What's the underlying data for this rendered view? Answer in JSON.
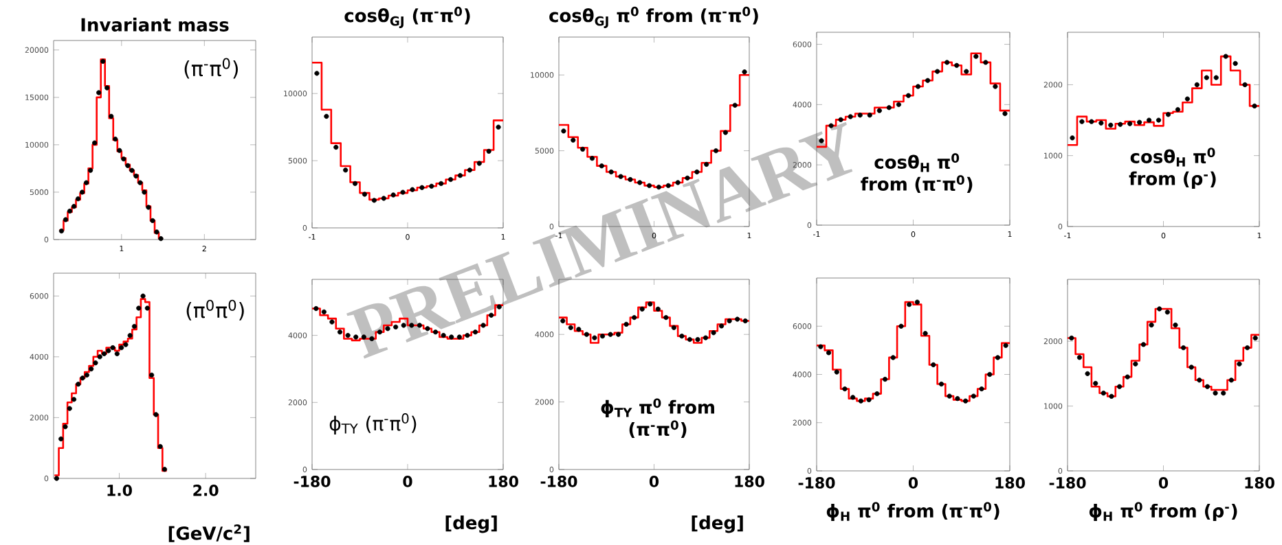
{
  "chart_data": [
    {
      "type": "histogram",
      "title": "Invariant mass",
      "annotations": [
        "(π$^{-}$π$^{0}$)",
        "PRELIMINARY"
      ],
      "xlim": [
        0.18,
        2.62
      ],
      "ylim": [
        0,
        21000
      ],
      "xticks": [
        1,
        2
      ],
      "yticks": [
        0,
        5000,
        10000,
        15000,
        20000
      ],
      "series": [
        {
          "type": "histogram",
          "color": "#ff0000",
          "bins": [
            0.25,
            0.3,
            0.35,
            0.4,
            0.45,
            0.5,
            0.55,
            0.6,
            0.65,
            0.7,
            0.75,
            0.8,
            0.85,
            0.9,
            0.95,
            1.0,
            1.05,
            1.1,
            1.15,
            1.2,
            1.25,
            1.3,
            1.35,
            1.4,
            1.45,
            1.5
          ],
          "values": [
            1000,
            2000,
            2900,
            3400,
            4200,
            4900,
            5900,
            7500,
            10000,
            15000,
            19000,
            16200,
            12800,
            10500,
            9300,
            8600,
            7900,
            7300,
            6800,
            6000,
            5200,
            3500,
            2000,
            700,
            100
          ]
        },
        {
          "type": "scatter",
          "color": "#000000",
          "marker": "circle",
          "x": [
            0.275,
            0.325,
            0.375,
            0.425,
            0.475,
            0.525,
            0.575,
            0.625,
            0.675,
            0.725,
            0.775,
            0.825,
            0.875,
            0.925,
            0.975,
            1.025,
            1.075,
            1.125,
            1.175,
            1.225,
            1.275,
            1.325,
            1.375,
            1.425,
            1.475
          ],
          "values": [
            900,
            2100,
            3000,
            3500,
            4300,
            5000,
            6000,
            7300,
            10200,
            15500,
            18800,
            16000,
            13000,
            10600,
            9400,
            8500,
            7800,
            7300,
            6700,
            6000,
            5000,
            3400,
            2000,
            800,
            100
          ]
        }
      ]
    },
    {
      "type": "histogram",
      "title": "cosθ$_{GJ}$ (π$^{-}$π$^{0}$)",
      "xlim": [
        -1,
        1
      ],
      "ylim": [
        0,
        14200
      ],
      "xticks": [
        -1,
        0,
        1
      ],
      "yticks": [
        0,
        5000,
        10000
      ],
      "series": [
        {
          "type": "histogram",
          "color": "#ff0000",
          "bins": [
            -1,
            -0.9,
            -0.8,
            -0.7,
            -0.6,
            -0.5,
            -0.4,
            -0.3,
            -0.2,
            -0.1,
            0,
            0.1,
            0.2,
            0.3,
            0.4,
            0.5,
            0.6,
            0.7,
            0.8,
            0.9,
            1
          ],
          "values": [
            12300,
            8800,
            6300,
            4600,
            3400,
            2600,
            2100,
            2200,
            2400,
            2600,
            2800,
            3000,
            3100,
            3300,
            3600,
            3900,
            4300,
            4900,
            5800,
            8000
          ]
        },
        {
          "type": "scatter",
          "color": "#000000",
          "marker": "circle",
          "x": [
            -0.95,
            -0.85,
            -0.75,
            -0.65,
            -0.55,
            -0.45,
            -0.35,
            -0.25,
            -0.15,
            -0.05,
            0.05,
            0.15,
            0.25,
            0.35,
            0.45,
            0.55,
            0.65,
            0.75,
            0.85,
            0.95
          ],
          "values": [
            11500,
            8300,
            6000,
            4300,
            3300,
            2500,
            2050,
            2200,
            2450,
            2650,
            2850,
            3000,
            3100,
            3300,
            3600,
            3900,
            4300,
            4800,
            5700,
            7500
          ]
        }
      ]
    },
    {
      "type": "histogram",
      "title": "cosθ$_{GJ}$ π$^{0}$ from (π$^{-}$π$^{0}$)",
      "xlim": [
        -1,
        1
      ],
      "ylim": [
        0,
        12500
      ],
      "xticks": [
        -1,
        0,
        1
      ],
      "yticks": [
        0,
        5000,
        10000
      ],
      "series": [
        {
          "type": "histogram",
          "color": "#ff0000",
          "bins": [
            -1,
            -0.9,
            -0.8,
            -0.7,
            -0.6,
            -0.5,
            -0.4,
            -0.3,
            -0.2,
            -0.1,
            0,
            0.1,
            0.2,
            0.3,
            0.4,
            0.5,
            0.6,
            0.7,
            0.8,
            0.9,
            1
          ],
          "values": [
            6700,
            5900,
            5200,
            4600,
            4000,
            3600,
            3300,
            3100,
            2900,
            2700,
            2600,
            2700,
            2900,
            3200,
            3600,
            4200,
            5000,
            6300,
            8000,
            10000
          ]
        },
        {
          "type": "scatter",
          "color": "#000000",
          "marker": "circle",
          "x": [
            -0.95,
            -0.85,
            -0.75,
            -0.65,
            -0.55,
            -0.45,
            -0.35,
            -0.25,
            -0.15,
            -0.05,
            0.05,
            0.15,
            0.25,
            0.35,
            0.45,
            0.55,
            0.65,
            0.75,
            0.85,
            0.95
          ],
          "values": [
            6300,
            5700,
            5100,
            4500,
            4000,
            3600,
            3300,
            3100,
            2900,
            2700,
            2600,
            2700,
            2900,
            3200,
            3600,
            4100,
            5000,
            6200,
            8000,
            10200
          ]
        }
      ]
    },
    {
      "type": "histogram",
      "annotations": [
        "cosθ$_{H}$ π$^{0}$ from (π$^{-}$π$^{0}$)"
      ],
      "xlim": [
        -1,
        1
      ],
      "ylim": [
        0,
        6400
      ],
      "xticks": [
        -1,
        0,
        1
      ],
      "yticks": [
        0,
        2000,
        4000,
        6000
      ],
      "series": [
        {
          "type": "histogram",
          "color": "#ff0000",
          "bins": [
            -1,
            -0.9,
            -0.8,
            -0.7,
            -0.6,
            -0.5,
            -0.4,
            -0.3,
            -0.2,
            -0.1,
            0,
            0.1,
            0.2,
            0.3,
            0.4,
            0.5,
            0.6,
            0.7,
            0.8,
            0.9,
            1
          ],
          "values": [
            2600,
            3300,
            3500,
            3600,
            3700,
            3700,
            3900,
            3900,
            4100,
            4300,
            4600,
            4800,
            5100,
            5400,
            5300,
            5000,
            5700,
            5400,
            4700,
            3800
          ]
        },
        {
          "type": "scatter",
          "color": "#000000",
          "marker": "circle",
          "x": [
            -0.95,
            -0.85,
            -0.75,
            -0.65,
            -0.55,
            -0.45,
            -0.35,
            -0.25,
            -0.15,
            -0.05,
            0.05,
            0.15,
            0.25,
            0.35,
            0.45,
            0.55,
            0.65,
            0.75,
            0.85,
            0.95
          ],
          "values": [
            2800,
            3300,
            3500,
            3600,
            3650,
            3650,
            3800,
            3900,
            4000,
            4300,
            4600,
            4800,
            5100,
            5400,
            5300,
            5100,
            5600,
            5400,
            4600,
            3700
          ]
        }
      ]
    },
    {
      "type": "histogram",
      "annotations": [
        "cosθ$_{H}$ π$^{0}$ from (ρ$^{-}$)"
      ],
      "xlim": [
        -1,
        1
      ],
      "ylim": [
        0,
        2740
      ],
      "xticks": [
        -1,
        0,
        1
      ],
      "yticks": [
        0,
        1000,
        2000
      ],
      "series": [
        {
          "type": "histogram",
          "color": "#ff0000",
          "bins": [
            -1,
            -0.9,
            -0.8,
            -0.7,
            -0.6,
            -0.5,
            -0.4,
            -0.3,
            -0.2,
            -0.1,
            0,
            0.1,
            0.2,
            0.3,
            0.4,
            0.5,
            0.6,
            0.7,
            0.8,
            0.9,
            1
          ],
          "values": [
            1150,
            1550,
            1480,
            1500,
            1380,
            1450,
            1480,
            1430,
            1470,
            1420,
            1600,
            1620,
            1750,
            1950,
            2200,
            2000,
            2400,
            2200,
            2000,
            1700
          ]
        },
        {
          "type": "scatter",
          "color": "#000000",
          "marker": "circle",
          "x": [
            -0.95,
            -0.85,
            -0.75,
            -0.65,
            -0.55,
            -0.45,
            -0.35,
            -0.25,
            -0.15,
            -0.05,
            0.05,
            0.15,
            0.25,
            0.35,
            0.45,
            0.55,
            0.65,
            0.75,
            0.85,
            0.95
          ],
          "values": [
            1250,
            1480,
            1480,
            1460,
            1430,
            1440,
            1450,
            1470,
            1500,
            1500,
            1580,
            1650,
            1800,
            2000,
            2100,
            2100,
            2400,
            2300,
            2000,
            1700
          ]
        }
      ]
    },
    {
      "type": "histogram",
      "xlabel": "[GeV/c$^{2}$]",
      "annotations": [
        "(π$^{0}$π$^{0}$)"
      ],
      "xlim": [
        0.24,
        2.58
      ],
      "ylim": [
        0,
        6750
      ],
      "xticks": [
        {
          "value": 1,
          "label": "1.0"
        },
        {
          "value": 2,
          "label": "2.0"
        }
      ],
      "yticks": [
        0,
        2000,
        4000,
        6000
      ],
      "series": [
        {
          "type": "histogram",
          "color": "#ff0000",
          "bins": [
            0.25,
            0.3,
            0.35,
            0.4,
            0.45,
            0.5,
            0.55,
            0.6,
            0.65,
            0.7,
            0.75,
            0.8,
            0.85,
            0.9,
            0.95,
            1.0,
            1.05,
            1.1,
            1.15,
            1.2,
            1.25,
            1.3,
            1.35,
            1.4,
            1.45,
            1.5,
            1.55
          ],
          "values": [
            100,
            1000,
            1800,
            2500,
            2800,
            3100,
            3300,
            3500,
            3700,
            4000,
            4200,
            4100,
            4300,
            4300,
            4200,
            4400,
            4500,
            4600,
            4900,
            5300,
            5900,
            5800,
            3300,
            2100,
            1000,
            250
          ]
        },
        {
          "type": "scatter",
          "color": "#000000",
          "marker": "circle",
          "x": [
            0.275,
            0.325,
            0.375,
            0.425,
            0.475,
            0.525,
            0.575,
            0.625,
            0.675,
            0.725,
            0.775,
            0.825,
            0.875,
            0.925,
            0.975,
            1.025,
            1.075,
            1.125,
            1.175,
            1.225,
            1.275,
            1.325,
            1.375,
            1.425,
            1.475,
            1.525
          ],
          "values": [
            0,
            1300,
            1700,
            2300,
            2600,
            3100,
            3300,
            3400,
            3600,
            3800,
            4000,
            4100,
            4200,
            4300,
            4100,
            4300,
            4400,
            4700,
            5000,
            5600,
            6000,
            5600,
            3400,
            2100,
            1050,
            300
          ]
        }
      ]
    },
    {
      "type": "histogram",
      "xlabel": "[deg]",
      "annotations": [
        "ϕ$_{TY}$ (π$^{-}$π$^{0}$)"
      ],
      "xlim": [
        -180,
        180
      ],
      "ylim": [
        0,
        5670
      ],
      "xticks": [
        -180,
        0,
        180
      ],
      "yticks": [
        0,
        2000,
        4000
      ],
      "series": [
        {
          "type": "histogram",
          "color": "#ff0000",
          "bins": [
            -180,
            -165,
            -150,
            -135,
            -120,
            -105,
            -90,
            -75,
            -60,
            -45,
            -30,
            -15,
            0,
            15,
            30,
            45,
            60,
            75,
            90,
            105,
            120,
            135,
            150,
            165,
            180
          ],
          "values": [
            4800,
            4600,
            4500,
            4200,
            3900,
            3850,
            3900,
            3900,
            4100,
            4300,
            4400,
            4500,
            4300,
            4300,
            4200,
            4100,
            3950,
            3900,
            3900,
            4000,
            4100,
            4300,
            4600,
            4900
          ]
        },
        {
          "type": "scatter",
          "color": "#000000",
          "marker": "circle",
          "x": [
            -172.5,
            -157.5,
            -142.5,
            -127.5,
            -112.5,
            -97.5,
            -82.5,
            -67.5,
            -52.5,
            -37.5,
            -22.5,
            -7.5,
            7.5,
            22.5,
            37.5,
            52.5,
            67.5,
            82.5,
            97.5,
            112.5,
            127.5,
            142.5,
            157.5,
            172.5
          ],
          "values": [
            4800,
            4700,
            4400,
            4100,
            4000,
            3950,
            3950,
            3900,
            4100,
            4200,
            4250,
            4300,
            4300,
            4300,
            4200,
            4100,
            4000,
            3950,
            3950,
            4000,
            4100,
            4300,
            4600,
            4850
          ]
        }
      ]
    },
    {
      "type": "histogram",
      "xlabel": "[deg]",
      "annotations": [
        "ϕ$_{TY}$ π$^{0}$ from (π$^{-}$π$^{0}$)"
      ],
      "xlim": [
        -180,
        180
      ],
      "ylim": [
        0,
        5630
      ],
      "xticks": [
        -180,
        0,
        180
      ],
      "yticks": [
        0,
        2000,
        4000
      ],
      "series": [
        {
          "type": "histogram",
          "color": "#ff0000",
          "bins": [
            -180,
            -165,
            -150,
            -135,
            -120,
            -105,
            -90,
            -75,
            -60,
            -45,
            -30,
            -15,
            0,
            15,
            30,
            45,
            60,
            75,
            90,
            105,
            120,
            135,
            150,
            165,
            180
          ],
          "values": [
            4500,
            4300,
            4100,
            4000,
            3750,
            4000,
            4000,
            4050,
            4300,
            4500,
            4800,
            4950,
            4700,
            4500,
            4250,
            3950,
            3850,
            3750,
            3900,
            4100,
            4300,
            4450,
            4450,
            4400
          ]
        },
        {
          "type": "scatter",
          "color": "#000000",
          "marker": "circle",
          "x": [
            -172.5,
            -157.5,
            -142.5,
            -127.5,
            -112.5,
            -97.5,
            -82.5,
            -67.5,
            -52.5,
            -37.5,
            -22.5,
            -7.5,
            7.5,
            22.5,
            37.5,
            52.5,
            67.5,
            82.5,
            97.5,
            112.5,
            127.5,
            142.5,
            157.5,
            172.5
          ],
          "values": [
            4400,
            4200,
            4150,
            4000,
            3900,
            3950,
            4000,
            4000,
            4300,
            4500,
            4750,
            4900,
            4750,
            4500,
            4200,
            3950,
            3850,
            3850,
            3900,
            4050,
            4250,
            4400,
            4450,
            4400
          ]
        }
      ]
    },
    {
      "type": "histogram",
      "xlabel": "ϕ$_{H}$ π$^{0}$ from (π$^{-}$π$^{0}$)",
      "xlim": [
        -180,
        180
      ],
      "ylim": [
        0,
        8000
      ],
      "xticks": [
        -180,
        0,
        180
      ],
      "yticks": [
        0,
        2000,
        4000,
        6000
      ],
      "series": [
        {
          "type": "histogram",
          "color": "#ff0000",
          "bins": [
            -180,
            -165,
            -150,
            -135,
            -120,
            -105,
            -90,
            -75,
            -60,
            -45,
            -30,
            -15,
            0,
            15,
            30,
            45,
            60,
            75,
            90,
            105,
            120,
            135,
            150,
            165,
            180
          ],
          "values": [
            5200,
            5000,
            4200,
            3400,
            3000,
            2900,
            3000,
            3200,
            3800,
            4700,
            6000,
            7000,
            6900,
            5600,
            4400,
            3600,
            3100,
            2950,
            2900,
            3100,
            3400,
            4000,
            4700,
            5300
          ]
        },
        {
          "type": "scatter",
          "color": "#000000",
          "marker": "circle",
          "x": [
            -172.5,
            -157.5,
            -142.5,
            -127.5,
            -112.5,
            -97.5,
            -82.5,
            -67.5,
            -52.5,
            -37.5,
            -22.5,
            -7.5,
            7.5,
            22.5,
            37.5,
            52.5,
            67.5,
            82.5,
            97.5,
            112.5,
            127.5,
            142.5,
            157.5,
            172.5
          ],
          "values": [
            5150,
            4900,
            4100,
            3400,
            3050,
            2900,
            2950,
            3200,
            3800,
            4700,
            6000,
            6900,
            7000,
            5700,
            4400,
            3600,
            3100,
            3000,
            2900,
            3100,
            3400,
            4000,
            4700,
            5200
          ]
        }
      ]
    },
    {
      "type": "histogram",
      "xlabel": "ϕ$_{H}$ π$^{0}$ from (ρ$^{-}$)",
      "xlim": [
        -180,
        180
      ],
      "ylim": [
        0,
        2955
      ],
      "xticks": [
        -180,
        0,
        180
      ],
      "yticks": [
        0,
        1000,
        2000
      ],
      "series": [
        {
          "type": "histogram",
          "color": "#ff0000",
          "bins": [
            -180,
            -165,
            -150,
            -135,
            -120,
            -105,
            -90,
            -75,
            -60,
            -45,
            -30,
            -15,
            0,
            15,
            30,
            45,
            60,
            75,
            90,
            105,
            120,
            135,
            150,
            165,
            180
          ],
          "values": [
            2050,
            1800,
            1600,
            1300,
            1200,
            1150,
            1300,
            1450,
            1700,
            1950,
            2300,
            2500,
            2500,
            2200,
            1900,
            1600,
            1400,
            1300,
            1250,
            1250,
            1400,
            1700,
            1900,
            2100
          ]
        },
        {
          "type": "scatter",
          "color": "#000000",
          "marker": "circle",
          "x": [
            -172.5,
            -157.5,
            -142.5,
            -127.5,
            -112.5,
            -97.5,
            -82.5,
            -67.5,
            -52.5,
            -37.5,
            -22.5,
            -7.5,
            7.5,
            22.5,
            37.5,
            52.5,
            67.5,
            82.5,
            97.5,
            112.5,
            127.5,
            142.5,
            157.5,
            172.5
          ],
          "values": [
            2050,
            1750,
            1500,
            1350,
            1200,
            1150,
            1300,
            1450,
            1650,
            1950,
            2250,
            2500,
            2450,
            2250,
            1900,
            1600,
            1400,
            1300,
            1200,
            1200,
            1400,
            1650,
            1900,
            2050
          ]
        }
      ]
    }
  ]
}
